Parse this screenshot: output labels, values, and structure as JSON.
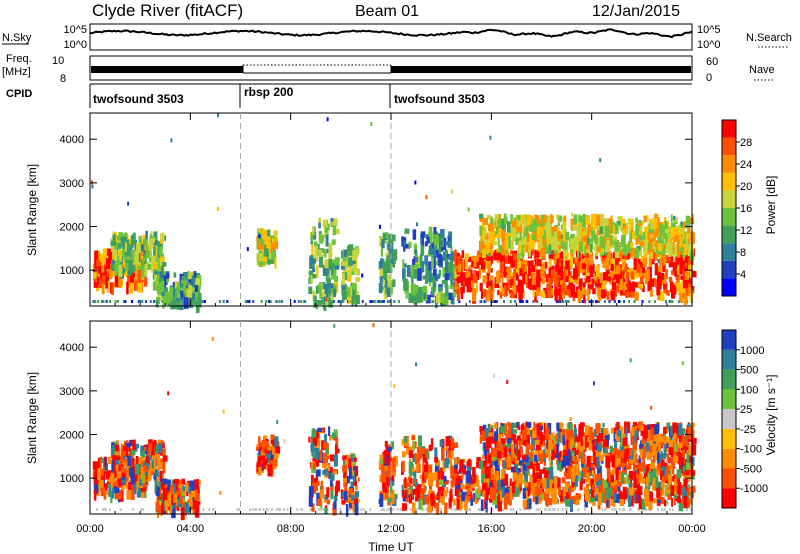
{
  "header": {
    "station": "Clyde River (fitACF)",
    "beam": "Beam 01",
    "date": "12/Jan/2015"
  },
  "strip_panels": {
    "nsky_label": "N.Sky",
    "nsky_ticks": [
      "10^5",
      "10^0"
    ],
    "nsearch_label": "N.Search",
    "nsearch_ticks": [
      "10^5",
      "10^0"
    ],
    "freq_label_1": "Freq.",
    "freq_label_2": "[MHz]",
    "freq_ticks": [
      "10",
      "8"
    ],
    "nave_label": "Nave",
    "nave_ticks": [
      "60",
      "0"
    ],
    "cpid_label": "CPID",
    "cpid_segments": [
      {
        "label": "twofsound 3503",
        "start_h": 0,
        "end_h": 6
      },
      {
        "label": "rbsp 200",
        "start_h": 6,
        "end_h": 12
      },
      {
        "label": "twofsound 3503",
        "start_h": 12,
        "end_h": 24
      }
    ]
  },
  "chart_data": [
    {
      "type": "heatmap",
      "panel": "power",
      "xlabel": "",
      "ylabel": "Slant Range [km]",
      "xlim_hours": [
        0,
        24
      ],
      "ylim": [
        180,
        4600
      ],
      "yticks": [
        1000,
        2000,
        3000,
        4000
      ],
      "colorbar": {
        "label": "Power [dB]",
        "ticks": [
          "28",
          "24",
          "20",
          "16",
          "12",
          "8",
          "4"
        ],
        "colors": [
          "#0000ff",
          "#2040c0",
          "#2f7f9a",
          "#3fa05a",
          "#6cc23a",
          "#c8d43c",
          "#ffc000",
          "#ff8c00",
          "#ff4e00",
          "#ff0000"
        ]
      },
      "scatter_regions": [
        {
          "t": [
            0.1,
            2.2
          ],
          "r": [
            700,
            1500
          ],
          "level": 0.85
        },
        {
          "t": [
            0.8,
            2.9
          ],
          "r": [
            1100,
            1900
          ],
          "level": 0.45
        },
        {
          "t": [
            2.5,
            4.3
          ],
          "r": [
            300,
            1000
          ],
          "level": 0.35
        },
        {
          "t": [
            6.6,
            7.4
          ],
          "r": [
            1300,
            2000
          ],
          "level": 0.55
        },
        {
          "t": [
            8.7,
            9.8
          ],
          "r": [
            300,
            2200
          ],
          "level": 0.4
        },
        {
          "t": [
            10.0,
            10.6
          ],
          "r": [
            400,
            1600
          ],
          "level": 0.45
        },
        {
          "t": [
            11.5,
            12.1
          ],
          "r": [
            500,
            1900
          ],
          "level": 0.4
        },
        {
          "t": [
            12.4,
            14.5
          ],
          "r": [
            400,
            2000
          ],
          "level": 0.3
        },
        {
          "t": [
            14.5,
            24.0
          ],
          "r": [
            500,
            1500
          ],
          "level": 0.9
        },
        {
          "t": [
            15.5,
            24.0
          ],
          "r": [
            1500,
            2300
          ],
          "level": 0.6
        }
      ]
    },
    {
      "type": "heatmap",
      "panel": "velocity",
      "xlabel": "Time UT",
      "ylabel": "Slant Range [km]",
      "xlim_hours": [
        0,
        24
      ],
      "ylim": [
        180,
        4600
      ],
      "yticks": [
        1000,
        2000,
        3000,
        4000
      ],
      "xticks": [
        "00:00",
        "04:00",
        "08:00",
        "12:00",
        "16:00",
        "20:00",
        "00:00"
      ],
      "colorbar": {
        "label": "Velocity [m s⁻¹]",
        "ticks": [
          "1000",
          "500",
          "100",
          "25",
          "-25",
          "-100",
          "-500",
          "-1000"
        ],
        "colors": [
          "#ff0000",
          "#ff4e00",
          "#ff8c00",
          "#ffc000",
          "#c8c8c8",
          "#6cc23a",
          "#3fa05a",
          "#2f7f9a",
          "#2040c0"
        ]
      },
      "scatter_regions": [
        {
          "t": [
            0.1,
            2.2
          ],
          "r": [
            700,
            1500
          ],
          "level": 0.35
        },
        {
          "t": [
            0.8,
            2.9
          ],
          "r": [
            1100,
            1900
          ],
          "level": 0.25
        },
        {
          "t": [
            2.5,
            4.3
          ],
          "r": [
            300,
            1000
          ],
          "level": 0.2
        },
        {
          "t": [
            6.6,
            7.4
          ],
          "r": [
            1300,
            2000
          ],
          "level": 0.2
        },
        {
          "t": [
            8.7,
            9.8
          ],
          "r": [
            300,
            2200
          ],
          "level": 0.25
        },
        {
          "t": [
            10.0,
            10.6
          ],
          "r": [
            400,
            1600
          ],
          "level": 0.2
        },
        {
          "t": [
            11.5,
            12.1
          ],
          "r": [
            500,
            1900
          ],
          "level": 0.25
        },
        {
          "t": [
            12.4,
            14.5
          ],
          "r": [
            400,
            2000
          ],
          "level": 0.3
        },
        {
          "t": [
            14.5,
            24.0
          ],
          "r": [
            500,
            1500
          ],
          "level": 0.5
        },
        {
          "t": [
            15.5,
            24.0
          ],
          "r": [
            1500,
            2300
          ],
          "level": 0.3
        }
      ]
    }
  ]
}
